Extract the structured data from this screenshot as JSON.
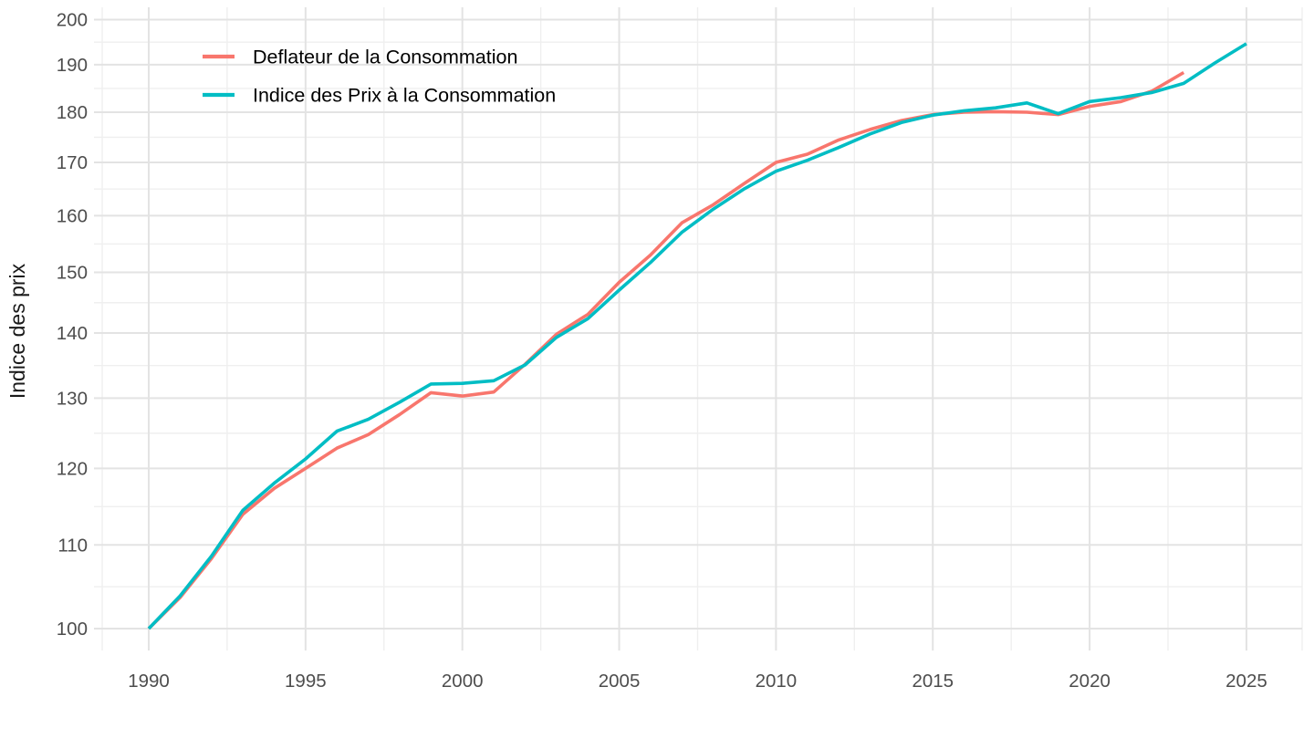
{
  "chart_data": {
    "type": "line",
    "title": "",
    "xlabel": "",
    "ylabel": "Indice des prix",
    "y_scale": "log",
    "grid": true,
    "legend_position": "inside-top-left",
    "x_ticks": [
      1990,
      1995,
      2000,
      2005,
      2010,
      2015,
      2020,
      2025
    ],
    "y_ticks": [
      100,
      110,
      120,
      130,
      140,
      150,
      160,
      170,
      180,
      190,
      200
    ],
    "xlim": [
      1988.5,
      2026.8
    ],
    "ylim": [
      97.5,
      201.5
    ],
    "years": [
      1990,
      1991,
      1992,
      1993,
      1994,
      1995,
      1996,
      1997,
      1998,
      1999,
      2000,
      2001,
      2002,
      2003,
      2004,
      2005,
      2006,
      2007,
      2008,
      2009,
      2010,
      2011,
      2012,
      2013,
      2014,
      2015,
      2016,
      2017,
      2018,
      2019,
      2020,
      2021,
      2022,
      2023,
      2024,
      2025
    ],
    "series": [
      {
        "name": "Deflateur de la Consommation",
        "color": "#F8766D",
        "values": [
          100,
          103.6,
          108.3,
          113.9,
          117.3,
          120.0,
          122.8,
          124.7,
          127.6,
          130.8,
          130.3,
          130.9,
          135.1,
          139.8,
          143.0,
          148.3,
          153.0,
          158.7,
          162.0,
          166.0,
          170.0,
          171.6,
          174.4,
          176.5,
          178.3,
          179.5,
          180.0,
          180.1,
          180.0,
          179.5,
          181.2,
          182.2,
          184.4,
          188.3
        ]
      },
      {
        "name": "Indice des Prix à la Consommation",
        "color": "#00BDC4",
        "values": [
          100,
          103.8,
          108.6,
          114.4,
          118.0,
          121.3,
          125.2,
          126.9,
          129.4,
          132.1,
          132.2,
          132.6,
          135.0,
          139.3,
          142.3,
          147.0,
          151.7,
          157.0,
          161.2,
          165.0,
          168.3,
          170.4,
          172.9,
          175.6,
          177.9,
          179.4,
          180.3,
          180.9,
          181.9,
          179.7,
          182.2,
          183.0,
          184.1,
          186.0,
          190.4,
          194.6
        ]
      }
    ]
  }
}
